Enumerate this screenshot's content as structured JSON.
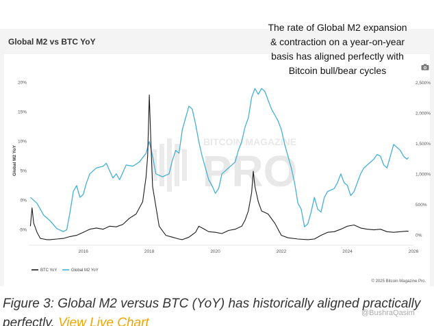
{
  "header": {
    "title": "Global M2 vs BTC YoY"
  },
  "annotation": {
    "lines": [
      "The rate of Global M2 expansion",
      "& contraction on a year-on-year",
      "basis has aligned perfectly with",
      "Bitcoin bull/bear cycles"
    ]
  },
  "watermark": {
    "top": "BITCOIN MAGAZINE",
    "main": "PRO"
  },
  "copyright": "© 2025 Bitcoin Magazine Pro.",
  "caption": {
    "text": "Figure 3: Global M2 versus BTC (YoY) has historically aligned practically perfectly.",
    "link": "View Live Chart"
  },
  "credit": "@BushraQasim",
  "colors": {
    "btc": "#1a1a1a",
    "m2": "#43b0d8"
  },
  "icons": {
    "camera": "camera-icon",
    "btc_legend": "line-swatch-black",
    "m2_legend": "line-swatch-blue"
  },
  "chart_data": {
    "type": "line",
    "title": "Global M2 vs BTC YoY",
    "xlabel": "",
    "y_left_label": "Global M2 YoY",
    "y_right_label": "",
    "x_ticks": [
      "2016",
      "2018",
      "2020",
      "2022",
      "2024",
      "2026"
    ],
    "y_left_ticks": [
      "-5%",
      "0%",
      "5%",
      "10%",
      "15%",
      "20%"
    ],
    "y_right_ticks": [
      "0%",
      "500%",
      "1,000%",
      "1,500%",
      "2,000%",
      "2,500%"
    ],
    "x_range": [
      2014.35,
      2026.0
    ],
    "y_left_range": [
      -7.5,
      21
    ],
    "y_right_range": [
      -150,
      2600
    ],
    "legend": {
      "position": "bottom-left",
      "entries": [
        "BTC YoY",
        "Global M2 YoY"
      ]
    },
    "grid": false,
    "series": [
      {
        "name": "Global M2 YoY",
        "axis": "left",
        "points": [
          [
            2014.4,
            0.5
          ],
          [
            2014.6,
            -0.5
          ],
          [
            2014.8,
            -2.5
          ],
          [
            2015.0,
            -3.5
          ],
          [
            2015.2,
            -4.8
          ],
          [
            2015.4,
            -5.3
          ],
          [
            2015.5,
            -5.0
          ],
          [
            2015.6,
            -2.0
          ],
          [
            2015.7,
            1.5
          ],
          [
            2015.8,
            2.5
          ],
          [
            2015.9,
            0.5
          ],
          [
            2016.0,
            1.0
          ],
          [
            2016.1,
            3.0
          ],
          [
            2016.2,
            4.5
          ],
          [
            2016.4,
            5.5
          ],
          [
            2016.6,
            5.8
          ],
          [
            2016.7,
            6.3
          ],
          [
            2016.8,
            5.0
          ],
          [
            2016.9,
            3.8
          ],
          [
            2017.0,
            4.5
          ],
          [
            2017.1,
            3.5
          ],
          [
            2017.3,
            6.0
          ],
          [
            2017.5,
            5.8
          ],
          [
            2017.7,
            6.5
          ],
          [
            2017.9,
            8.0
          ],
          [
            2018.0,
            10.0
          ],
          [
            2018.1,
            7.5
          ],
          [
            2018.2,
            4.5
          ],
          [
            2018.4,
            4.0
          ],
          [
            2018.6,
            4.5
          ],
          [
            2018.7,
            6.8
          ],
          [
            2018.8,
            8.5
          ],
          [
            2018.9,
            8.0
          ],
          [
            2019.0,
            12.0
          ],
          [
            2019.1,
            14.0
          ],
          [
            2019.2,
            16.0
          ],
          [
            2019.3,
            15.5
          ],
          [
            2019.4,
            13.0
          ],
          [
            2019.5,
            10.0
          ],
          [
            2019.6,
            7.5
          ],
          [
            2019.8,
            3.5
          ],
          [
            2019.9,
            2.5
          ],
          [
            2020.0,
            1.2
          ],
          [
            2020.1,
            2.0
          ],
          [
            2020.2,
            4.5
          ],
          [
            2020.4,
            5.5
          ],
          [
            2020.6,
            6.5
          ],
          [
            2020.7,
            8.5
          ],
          [
            2020.8,
            10.0
          ],
          [
            2020.9,
            12.5
          ],
          [
            2021.0,
            14.0
          ],
          [
            2021.1,
            17.5
          ],
          [
            2021.2,
            19.0
          ],
          [
            2021.3,
            18.0
          ],
          [
            2021.4,
            19.0
          ],
          [
            2021.5,
            18.5
          ],
          [
            2021.6,
            17.0
          ],
          [
            2021.7,
            15.5
          ],
          [
            2021.8,
            14.5
          ],
          [
            2021.9,
            13.5
          ],
          [
            2022.0,
            12.0
          ],
          [
            2022.1,
            9.5
          ],
          [
            2022.2,
            7.5
          ],
          [
            2022.3,
            5.5
          ],
          [
            2022.4,
            3.0
          ],
          [
            2022.5,
            -0.5
          ],
          [
            2022.6,
            -1.5
          ],
          [
            2022.7,
            -4.5
          ],
          [
            2022.8,
            -4.0
          ],
          [
            2022.9,
            -2.0
          ],
          [
            2023.0,
            0.5
          ],
          [
            2023.1,
            -1.5
          ],
          [
            2023.2,
            -2.0
          ],
          [
            2023.3,
            0.5
          ],
          [
            2023.4,
            1.5
          ],
          [
            2023.6,
            2.0
          ],
          [
            2023.7,
            3.0
          ],
          [
            2023.8,
            4.5
          ],
          [
            2023.9,
            3.0
          ],
          [
            2024.0,
            2.5
          ],
          [
            2024.1,
            0.8
          ],
          [
            2024.2,
            1.5
          ],
          [
            2024.4,
            4.5
          ],
          [
            2024.5,
            5.5
          ],
          [
            2024.6,
            6.0
          ],
          [
            2024.8,
            7.0
          ],
          [
            2024.9,
            7.8
          ],
          [
            2025.0,
            7.5
          ],
          [
            2025.1,
            6.0
          ],
          [
            2025.2,
            5.5
          ],
          [
            2025.3,
            7.5
          ],
          [
            2025.4,
            9.5
          ],
          [
            2025.5,
            9.0
          ],
          [
            2025.6,
            8.5
          ],
          [
            2025.7,
            7.5
          ],
          [
            2025.8,
            7.0
          ],
          [
            2025.85,
            7.3
          ]
        ]
      },
      {
        "name": "BTC YoY",
        "axis": "right",
        "points": [
          [
            2014.4,
            150
          ],
          [
            2014.45,
            450
          ],
          [
            2014.5,
            200
          ],
          [
            2014.6,
            50
          ],
          [
            2014.7,
            -50
          ],
          [
            2014.8,
            -60
          ],
          [
            2014.9,
            -70
          ],
          [
            2015.0,
            -70
          ],
          [
            2015.2,
            -60
          ],
          [
            2015.4,
            -50
          ],
          [
            2015.6,
            -20
          ],
          [
            2015.8,
            0
          ],
          [
            2016.0,
            50
          ],
          [
            2016.2,
            100
          ],
          [
            2016.4,
            120
          ],
          [
            2016.6,
            100
          ],
          [
            2016.8,
            150
          ],
          [
            2017.0,
            140
          ],
          [
            2017.2,
            180
          ],
          [
            2017.4,
            280
          ],
          [
            2017.6,
            350
          ],
          [
            2017.8,
            550
          ],
          [
            2017.9,
            950
          ],
          [
            2017.95,
            1300
          ],
          [
            2018.0,
            2300
          ],
          [
            2018.05,
            1500
          ],
          [
            2018.1,
            800
          ],
          [
            2018.3,
            150
          ],
          [
            2018.5,
            0
          ],
          [
            2018.7,
            -30
          ],
          [
            2018.9,
            -60
          ],
          [
            2019.0,
            -70
          ],
          [
            2019.2,
            -30
          ],
          [
            2019.4,
            50
          ],
          [
            2019.5,
            150
          ],
          [
            2019.6,
            120
          ],
          [
            2019.8,
            60
          ],
          [
            2020.0,
            50
          ],
          [
            2020.2,
            30
          ],
          [
            2020.4,
            80
          ],
          [
            2020.6,
            100
          ],
          [
            2020.8,
            150
          ],
          [
            2020.9,
            250
          ],
          [
            2021.0,
            400
          ],
          [
            2021.1,
            700
          ],
          [
            2021.15,
            1050
          ],
          [
            2021.2,
            800
          ],
          [
            2021.3,
            550
          ],
          [
            2021.4,
            400
          ],
          [
            2021.6,
            350
          ],
          [
            2021.8,
            200
          ],
          [
            2022.0,
            0
          ],
          [
            2022.2,
            -40
          ],
          [
            2022.5,
            -60
          ],
          [
            2022.8,
            -70
          ],
          [
            2023.0,
            -60
          ],
          [
            2023.2,
            0
          ],
          [
            2023.4,
            50
          ],
          [
            2023.6,
            60
          ],
          [
            2023.8,
            100
          ],
          [
            2024.0,
            150
          ],
          [
            2024.2,
            170
          ],
          [
            2024.4,
            120
          ],
          [
            2024.6,
            100
          ],
          [
            2024.8,
            90
          ],
          [
            2025.0,
            100
          ],
          [
            2025.2,
            60
          ],
          [
            2025.4,
            50
          ],
          [
            2025.6,
            60
          ],
          [
            2025.8,
            70
          ],
          [
            2025.85,
            65
          ]
        ]
      }
    ]
  }
}
